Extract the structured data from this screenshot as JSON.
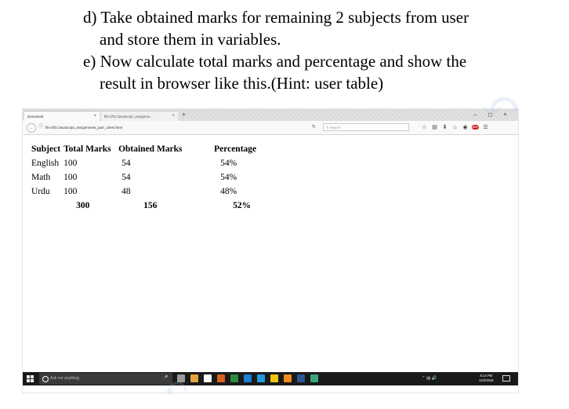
{
  "document": {
    "lines": [
      "d) Take obtained marks for remaining 2 subjects from user",
      "and store them in variables.",
      "e) Now calculate total marks and percentage and show the",
      "result in browser like this.(Hint: user table)"
    ]
  },
  "browser": {
    "tabs": [
      {
        "title": "Document",
        "close": "×"
      },
      {
        "title": "file:///D:/Javascript_assignme...",
        "close": "×"
      }
    ],
    "new_tab": "+",
    "window_controls": {
      "minimize": "–",
      "maximize": "◻",
      "close": "×"
    },
    "url": "file:///D:/Javascript_assignments_part_1/test.html",
    "search_placeholder": "Search",
    "page_table": {
      "headers": [
        "Subject",
        "Total Marks",
        "Obtained Marks",
        "Percentage"
      ],
      "rows": [
        {
          "subject": "English",
          "total": "100",
          "obtained": "54",
          "percentage": "54%"
        },
        {
          "subject": "Math",
          "total": "100",
          "obtained": "54",
          "percentage": "54%"
        },
        {
          "subject": "Urdu",
          "total": "100",
          "obtained": "48",
          "percentage": "48%"
        }
      ],
      "totals": {
        "total": "300",
        "obtained": "156",
        "percentage": "52%"
      }
    },
    "taskbar": {
      "search_placeholder": "Ask me anything",
      "clock_time": "6:14 PM",
      "clock_date": "12/2/2016"
    },
    "colors": {
      "taskbar": "#1a1a1a",
      "apps": [
        "#9a9a9a",
        "#e8a33c",
        "#ffffff",
        "#d8641c",
        "#2c8c3c",
        "#1a7fd4",
        "#1f9bde",
        "#f1c40f",
        "#f28b1e",
        "#2b5797",
        "#3aa57c"
      ]
    }
  }
}
